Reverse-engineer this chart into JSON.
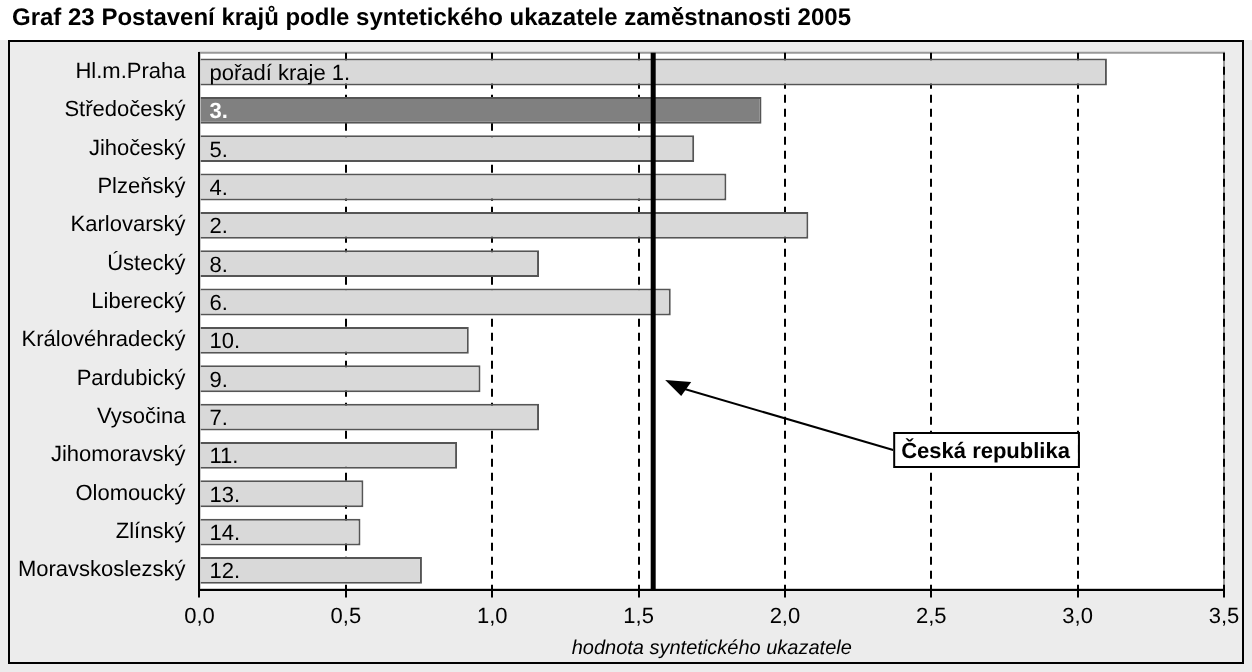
{
  "chart_data": {
    "type": "bar",
    "orientation": "horizontal",
    "title": "Graf 23 Postavení krajů podle syntetického ukazatele zaměstnanosti 2005",
    "xlabel": "hodnota syntetického ukazatele",
    "categories": [
      "Hl.m.Praha",
      "Středočeský",
      "Jihočeský",
      "Plzeňský",
      "Karlovarský",
      "Ústecký",
      "Liberecký",
      "Královéhradecký",
      "Pardubický",
      "Vysočina",
      "Jihomoravský",
      "Olomoucký",
      "Zlínský",
      "Moravskoslezský"
    ],
    "values": [
      3.1,
      1.92,
      1.69,
      1.8,
      2.08,
      1.16,
      1.61,
      0.92,
      0.96,
      1.16,
      0.88,
      0.56,
      0.55,
      0.76
    ],
    "colors": [
      "#d9d9d9",
      "#808080",
      "#d9d9d9",
      "#d9d9d9",
      "#d9d9d9",
      "#d9d9d9",
      "#d9d9d9",
      "#d9d9d9",
      "#d9d9d9",
      "#d9d9d9",
      "#d9d9d9",
      "#d9d9d9",
      "#d9d9d9",
      "#d9d9d9"
    ],
    "annotations": [
      {
        "text": "pořadí kraje 1.",
        "y": "Hl.m.Praha"
      },
      {
        "text": "3.",
        "y": "Středočeský"
      },
      {
        "text": "5.",
        "y": "Jihočeský"
      },
      {
        "text": "4.",
        "y": "Plzeňský"
      },
      {
        "text": "2.",
        "y": "Karlovarský"
      },
      {
        "text": "8.",
        "y": "Ústecký"
      },
      {
        "text": "6.",
        "y": "Liberecký"
      },
      {
        "text": "10.",
        "y": "Královéhradecký"
      },
      {
        "text": "9.",
        "y": "Pardubický"
      },
      {
        "text": "7.",
        "y": "Vysočina"
      },
      {
        "text": "11.",
        "y": "Jihomoravský"
      },
      {
        "text": "13.",
        "y": "Olomoucký"
      },
      {
        "text": "14.",
        "y": "Zlínský"
      },
      {
        "text": "12.",
        "y": "Moravskoslezský"
      }
    ],
    "xlim": [
      0,
      3.5
    ],
    "xticks": [
      {
        "value": 0,
        "label": "0,0"
      },
      {
        "value": 0.5,
        "label": "0,5"
      },
      {
        "value": 1,
        "label": "1,0"
      },
      {
        "value": 1.5,
        "label": "1,5"
      },
      {
        "value": 2,
        "label": "2,0"
      },
      {
        "value": 2.5,
        "label": "2,5"
      },
      {
        "value": 3,
        "label": "3,0"
      },
      {
        "value": 3.5,
        "label": "3,5"
      }
    ],
    "grid": "x",
    "line_style": "dashed",
    "legend": false,
    "ref_lines": [
      {
        "axis": "x",
        "value": 1.55,
        "label": "Česká republika",
        "color": "#000000"
      }
    ]
  }
}
